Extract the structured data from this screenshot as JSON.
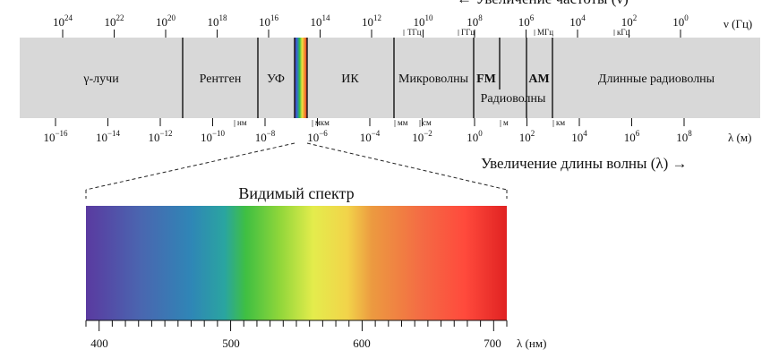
{
  "top_arrow_text": "← Увеличение частоты (ν)",
  "freq_axis": {
    "unit_label": "ν (Гц)",
    "ticks": [
      {
        "base": "10",
        "exp": "24"
      },
      {
        "base": "10",
        "exp": "22"
      },
      {
        "base": "10",
        "exp": "20"
      },
      {
        "base": "10",
        "exp": "18"
      },
      {
        "base": "10",
        "exp": "16"
      },
      {
        "base": "10",
        "exp": "14"
      },
      {
        "base": "10",
        "exp": "12"
      },
      {
        "base": "10",
        "exp": "10"
      },
      {
        "base": "10",
        "exp": "8"
      },
      {
        "base": "10",
        "exp": "6"
      },
      {
        "base": "10",
        "exp": "4"
      },
      {
        "base": "10",
        "exp": "2"
      },
      {
        "base": "10",
        "exp": "0"
      }
    ],
    "unit_marks": [
      "ТГц",
      "ГГц",
      "МГц",
      "кГц"
    ]
  },
  "wave_axis": {
    "unit_label": "λ (м)",
    "ticks": [
      {
        "base": "10",
        "exp": "−16"
      },
      {
        "base": "10",
        "exp": "−14"
      },
      {
        "base": "10",
        "exp": "−12"
      },
      {
        "base": "10",
        "exp": "−10"
      },
      {
        "base": "10",
        "exp": "−8"
      },
      {
        "base": "10",
        "exp": "−6"
      },
      {
        "base": "10",
        "exp": "−4"
      },
      {
        "base": "10",
        "exp": "−2"
      },
      {
        "base": "10",
        "exp": "0"
      },
      {
        "base": "10",
        "exp": "2"
      },
      {
        "base": "10",
        "exp": "4"
      },
      {
        "base": "10",
        "exp": "6"
      },
      {
        "base": "10",
        "exp": "8"
      }
    ],
    "unit_marks": [
      "нм",
      "мкм",
      "мм",
      "см",
      "м",
      "км"
    ]
  },
  "bands": {
    "gamma": "γ-лучи",
    "xray": "Рентген",
    "uv": "УФ",
    "ir": "ИК",
    "microwave": "Микроволны",
    "fm": "FM",
    "am": "AM",
    "radio": "Радиоволны",
    "long_radio": "Длинные радиоволны"
  },
  "bottom_arrow_text": "Увеличение длины волны (λ) →",
  "visible": {
    "title": "Видимый спектр",
    "axis_label": "λ (нм)",
    "labels": [
      "400",
      "500",
      "600",
      "700"
    ]
  }
}
